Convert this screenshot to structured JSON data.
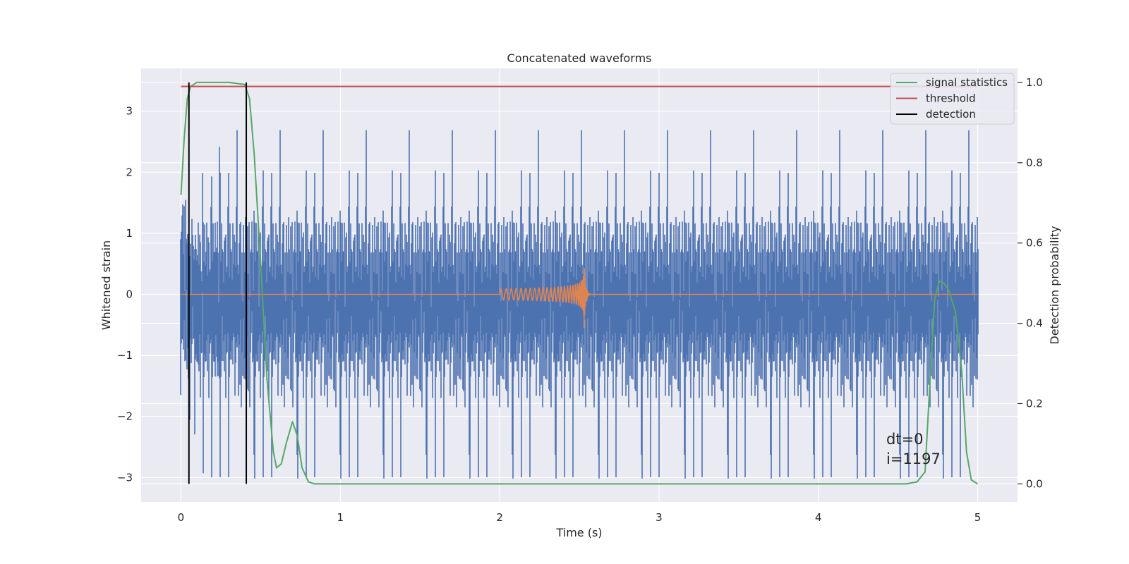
{
  "chart_data": {
    "type": "line",
    "title": "Concatenated waveforms",
    "xlabel": "Time (s)",
    "ylabel": "Whitened strain",
    "y2label": "Detection probability",
    "xlim": [
      -0.25,
      5.25
    ],
    "ylim": [
      -3.4,
      3.7
    ],
    "y2lim": [
      -0.045,
      1.035
    ],
    "xticks": [
      0,
      1,
      2,
      3,
      4,
      5
    ],
    "xtick_labels": [
      "0",
      "1",
      "2",
      "3",
      "4",
      "5"
    ],
    "yticks": [
      -3,
      -2,
      -1,
      0,
      1,
      2,
      3
    ],
    "ytick_labels": [
      "−3",
      "−2",
      "−1",
      "0",
      "1",
      "2",
      "3"
    ],
    "y2ticks": [
      0.0,
      0.2,
      0.4,
      0.6,
      0.8,
      1.0
    ],
    "y2tick_labels": [
      "0.0",
      "0.2",
      "0.4",
      "0.6",
      "0.8",
      "1.0"
    ],
    "grid": true,
    "legend_position": "top-right",
    "series": [
      {
        "name": "whitened strain",
        "color": "#4c72b0",
        "axis": "left",
        "kind": "noise",
        "x_range": [
          0,
          5
        ],
        "amplitude_rms": 0.95,
        "peak_range": [
          -3.1,
          3.3
        ]
      },
      {
        "name": "injected signal",
        "color": "#dd8452",
        "axis": "left",
        "kind": "chirp",
        "x_start": 2.0,
        "x_merger": 2.53,
        "peak_amplitude": 0.77,
        "min_amplitude": -0.55
      },
      {
        "name": "signal statistics",
        "color": "#55a868",
        "axis": "right",
        "x": [
          0.0,
          0.02,
          0.04,
          0.06,
          0.08,
          0.1,
          0.2,
          0.3,
          0.4,
          0.43,
          0.46,
          0.5,
          0.54,
          0.58,
          0.6,
          0.63,
          0.66,
          0.7,
          0.73,
          0.76,
          0.8,
          0.84,
          0.9,
          1.0,
          1.5,
          2.0,
          3.0,
          4.0,
          4.55,
          4.62,
          4.67,
          4.7,
          4.73,
          4.76,
          4.79,
          4.82,
          4.86,
          4.9,
          4.93,
          4.96,
          5.0
        ],
        "y": [
          0.72,
          0.86,
          0.96,
          0.99,
          0.995,
          1.0,
          1.0,
          1.0,
          0.995,
          0.96,
          0.82,
          0.55,
          0.26,
          0.08,
          0.04,
          0.05,
          0.1,
          0.155,
          0.12,
          0.04,
          0.005,
          0.0,
          0.0,
          0.0,
          0.0,
          0.0,
          0.0,
          0.0,
          0.0,
          0.005,
          0.03,
          0.25,
          0.46,
          0.505,
          0.5,
          0.48,
          0.43,
          0.28,
          0.08,
          0.01,
          0.0
        ]
      },
      {
        "name": "threshold",
        "color": "#c44e52",
        "axis": "right",
        "x": [
          0,
          5
        ],
        "y": [
          0.99,
          0.99
        ]
      },
      {
        "name": "detection",
        "color": "#000000",
        "axis": "right",
        "kind": "vlines",
        "x": [
          0.05,
          0.41
        ],
        "ymin": 0.0,
        "ymax": 1.0
      }
    ],
    "legend": [
      "signal statistics",
      "threshold",
      "detection"
    ],
    "annotations": [
      "dt=0",
      "i=1197"
    ]
  },
  "colors": {
    "axes_bg": "#eaeaf2",
    "grid": "#ffffff",
    "strain": "#4c72b0",
    "chirp": "#dd8452",
    "stat": "#55a868",
    "threshold": "#c44e52",
    "detection": "#000000"
  }
}
